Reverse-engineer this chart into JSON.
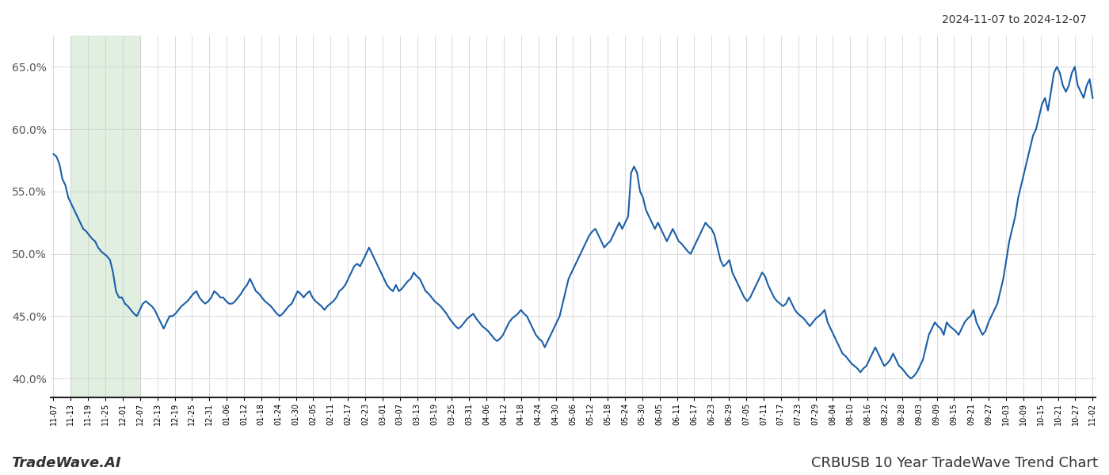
{
  "title_right": "2024-11-07 to 2024-12-07",
  "footer_left": "TradeWave.AI",
  "footer_right": "CRBUSB 10 Year TradeWave Trend Chart",
  "line_color": "#1a5ea8",
  "line_width": 1.5,
  "shaded_region_color": "#d8ead8",
  "shaded_region_alpha": 0.75,
  "ylim": [
    38.5,
    67.5
  ],
  "yticks": [
    40.0,
    45.0,
    50.0,
    55.0,
    60.0,
    65.0
  ],
  "background_color": "#ffffff",
  "grid_color": "#cccccc",
  "x_labels": [
    "11-07",
    "11-13",
    "11-19",
    "11-25",
    "12-01",
    "12-07",
    "12-13",
    "12-19",
    "12-25",
    "12-31",
    "01-06",
    "01-12",
    "01-18",
    "01-24",
    "01-30",
    "02-05",
    "02-11",
    "02-17",
    "02-23",
    "03-01",
    "03-07",
    "03-13",
    "03-19",
    "03-25",
    "03-31",
    "04-06",
    "04-12",
    "04-18",
    "04-24",
    "04-30",
    "05-06",
    "05-12",
    "05-18",
    "05-24",
    "05-30",
    "06-05",
    "06-11",
    "06-17",
    "06-23",
    "06-29",
    "07-05",
    "07-11",
    "07-17",
    "07-23",
    "07-29",
    "08-04",
    "08-10",
    "08-16",
    "08-22",
    "08-28",
    "09-03",
    "09-09",
    "09-15",
    "09-21",
    "09-27",
    "10-03",
    "10-09",
    "10-15",
    "10-21",
    "10-27",
    "11-02"
  ],
  "shaded_start_label": "11-13",
  "shaded_end_label": "12-07",
  "values": [
    58.0,
    57.8,
    57.2,
    56.0,
    55.5,
    54.5,
    54.0,
    53.5,
    53.0,
    52.5,
    52.0,
    51.8,
    51.5,
    51.2,
    51.0,
    50.5,
    50.2,
    50.0,
    49.8,
    49.5,
    48.5,
    47.0,
    46.5,
    46.5,
    46.0,
    45.8,
    45.5,
    45.2,
    45.0,
    45.5,
    46.0,
    46.2,
    46.0,
    45.8,
    45.5,
    45.0,
    44.5,
    44.0,
    44.5,
    45.0,
    45.0,
    45.2,
    45.5,
    45.8,
    46.0,
    46.2,
    46.5,
    46.8,
    47.0,
    46.5,
    46.2,
    46.0,
    46.2,
    46.5,
    47.0,
    46.8,
    46.5,
    46.5,
    46.2,
    46.0,
    46.0,
    46.2,
    46.5,
    46.8,
    47.2,
    47.5,
    48.0,
    47.5,
    47.0,
    46.8,
    46.5,
    46.2,
    46.0,
    45.8,
    45.5,
    45.2,
    45.0,
    45.2,
    45.5,
    45.8,
    46.0,
    46.5,
    47.0,
    46.8,
    46.5,
    46.8,
    47.0,
    46.5,
    46.2,
    46.0,
    45.8,
    45.5,
    45.8,
    46.0,
    46.2,
    46.5,
    47.0,
    47.2,
    47.5,
    48.0,
    48.5,
    49.0,
    49.2,
    49.0,
    49.5,
    50.0,
    50.5,
    50.0,
    49.5,
    49.0,
    48.5,
    48.0,
    47.5,
    47.2,
    47.0,
    47.5,
    47.0,
    47.2,
    47.5,
    47.8,
    48.0,
    48.5,
    48.2,
    48.0,
    47.5,
    47.0,
    46.8,
    46.5,
    46.2,
    46.0,
    45.8,
    45.5,
    45.2,
    44.8,
    44.5,
    44.2,
    44.0,
    44.2,
    44.5,
    44.8,
    45.0,
    45.2,
    44.8,
    44.5,
    44.2,
    44.0,
    43.8,
    43.5,
    43.2,
    43.0,
    43.2,
    43.5,
    44.0,
    44.5,
    44.8,
    45.0,
    45.2,
    45.5,
    45.2,
    45.0,
    44.5,
    44.0,
    43.5,
    43.2,
    43.0,
    42.5,
    43.0,
    43.5,
    44.0,
    44.5,
    45.0,
    46.0,
    47.0,
    48.0,
    48.5,
    49.0,
    49.5,
    50.0,
    50.5,
    51.0,
    51.5,
    51.8,
    52.0,
    51.5,
    51.0,
    50.5,
    50.8,
    51.0,
    51.5,
    52.0,
    52.5,
    52.0,
    52.5,
    53.0,
    56.5,
    57.0,
    56.5,
    55.0,
    54.5,
    53.5,
    53.0,
    52.5,
    52.0,
    52.5,
    52.0,
    51.5,
    51.0,
    51.5,
    52.0,
    51.5,
    51.0,
    50.8,
    50.5,
    50.2,
    50.0,
    50.5,
    51.0,
    51.5,
    52.0,
    52.5,
    52.2,
    52.0,
    51.5,
    50.5,
    49.5,
    49.0,
    49.2,
    49.5,
    48.5,
    48.0,
    47.5,
    47.0,
    46.5,
    46.2,
    46.5,
    47.0,
    47.5,
    48.0,
    48.5,
    48.2,
    47.5,
    47.0,
    46.5,
    46.2,
    46.0,
    45.8,
    46.0,
    46.5,
    46.0,
    45.5,
    45.2,
    45.0,
    44.8,
    44.5,
    44.2,
    44.5,
    44.8,
    45.0,
    45.2,
    45.5,
    44.5,
    44.0,
    43.5,
    43.0,
    42.5,
    42.0,
    41.8,
    41.5,
    41.2,
    41.0,
    40.8,
    40.5,
    40.8,
    41.0,
    41.5,
    42.0,
    42.5,
    42.0,
    41.5,
    41.0,
    41.2,
    41.5,
    42.0,
    41.5,
    41.0,
    40.8,
    40.5,
    40.2,
    40.0,
    40.2,
    40.5,
    41.0,
    41.5,
    42.5,
    43.5,
    44.0,
    44.5,
    44.2,
    44.0,
    43.5,
    44.5,
    44.2,
    44.0,
    43.8,
    43.5,
    44.0,
    44.5,
    44.8,
    45.0,
    45.5,
    44.5,
    44.0,
    43.5,
    43.8,
    44.5,
    45.0,
    45.5,
    46.0,
    47.0,
    48.0,
    49.5,
    51.0,
    52.0,
    53.0,
    54.5,
    55.5,
    56.5,
    57.5,
    58.5,
    59.5,
    60.0,
    61.0,
    62.0,
    62.5,
    61.5,
    63.0,
    64.5,
    65.0,
    64.5,
    63.5,
    63.0,
    63.5,
    64.5,
    65.0,
    63.5,
    63.0,
    62.5,
    63.5,
    64.0,
    62.5
  ]
}
